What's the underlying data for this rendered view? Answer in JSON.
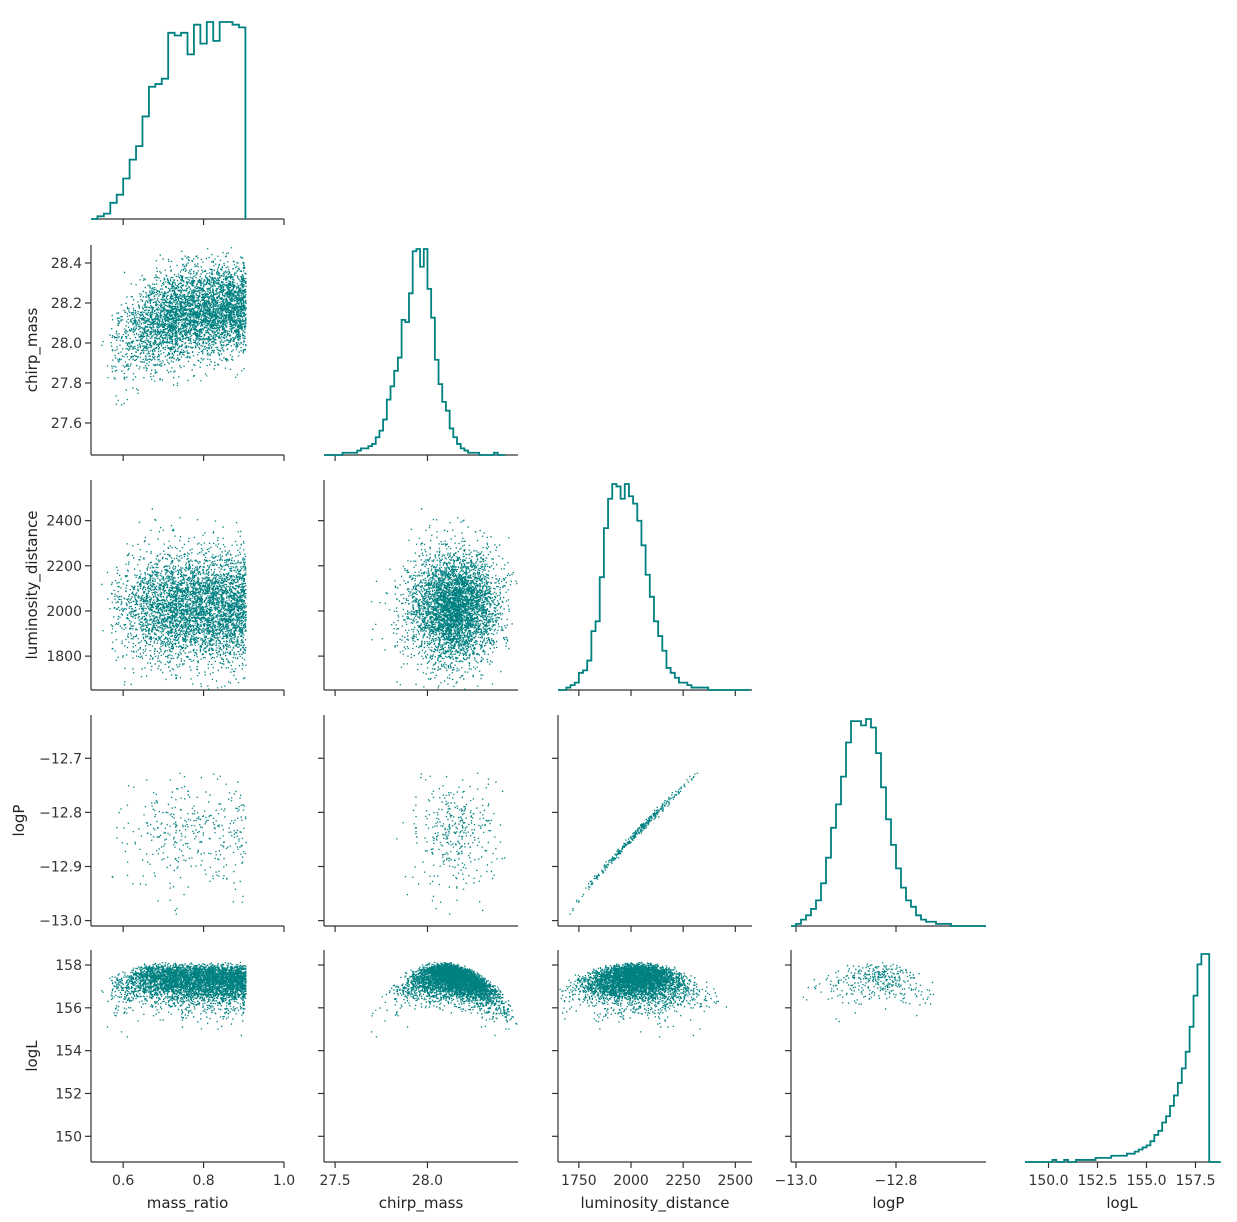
{
  "colors": {
    "accent": "#008080",
    "axis": "#333333",
    "background": "#ffffff"
  },
  "chart_data": {
    "type": "corner",
    "grid": false,
    "variables": [
      {
        "name": "mass_ratio",
        "range": [
          0.52,
          1.0
        ],
        "ticks": [
          0.6,
          0.8,
          1.0
        ],
        "tick_labels": [
          "0.6",
          "0.8",
          "1.0"
        ]
      },
      {
        "name": "chirp_mass",
        "range": [
          27.44,
          28.49
        ],
        "ticks": [
          27.6,
          27.8,
          28.0,
          28.2,
          28.4
        ],
        "tick_labels": [
          "27.6",
          "27.8",
          "28.0",
          "28.2",
          "28.4"
        ],
        "x_ticks": [
          27.5,
          28.0
        ],
        "x_tick_labels": [
          "27.5",
          "28.0"
        ]
      },
      {
        "name": "luminosity_distance",
        "range": [
          1650,
          2580
        ],
        "ticks": [
          1800,
          2000,
          2200,
          2400
        ],
        "tick_labels": [
          "1800",
          "2000",
          "2200",
          "2400"
        ],
        "x_ticks": [
          1750,
          2000,
          2250,
          2500
        ],
        "x_tick_labels": [
          "1750",
          "2000",
          "2250",
          "2500"
        ]
      },
      {
        "name": "logP",
        "range": [
          -13.01,
          -12.62
        ],
        "ticks": [
          -13.0,
          -12.9,
          -12.8,
          -12.7
        ],
        "tick_labels": [
          "−13.0",
          "−12.9",
          "−12.8",
          "−12.7"
        ],
        "x_ticks": [
          -13.0,
          -12.8
        ],
        "x_tick_labels": [
          "−13.0",
          "−12.8"
        ]
      },
      {
        "name": "logL",
        "range": [
          148.8,
          158.7
        ],
        "ticks": [
          150,
          152,
          154,
          156,
          158
        ],
        "tick_labels": [
          "150",
          "152",
          "154",
          "156",
          "158"
        ],
        "x_ticks": [
          150.0,
          152.5,
          155.0,
          157.5
        ],
        "x_tick_labels": [
          "150.0",
          "152.5",
          "155.0",
          "157.5"
        ]
      }
    ],
    "histograms": [
      {
        "variable": "mass_ratio",
        "bin_start": 0.52,
        "bin_width": 0.016,
        "counts": [
          0,
          1,
          2,
          6,
          9,
          15,
          22,
          27,
          38,
          49,
          50,
          52,
          69,
          68,
          69,
          61,
          72,
          65,
          73,
          66,
          73,
          73,
          72,
          71
        ]
      },
      {
        "variable": "chirp_mass",
        "bin_start": 27.44,
        "bin_width": 0.02,
        "counts": [
          0,
          0,
          0,
          0,
          0,
          1,
          1,
          1,
          1,
          2,
          3,
          3,
          4,
          5,
          8,
          11,
          16,
          25,
          31,
          38,
          44,
          61,
          60,
          73,
          92,
          93,
          85,
          93,
          75,
          62,
          43,
          32,
          24,
          20,
          12,
          8,
          5,
          3,
          2,
          1,
          1,
          1,
          0,
          0,
          0,
          0,
          1,
          0,
          0
        ]
      },
      {
        "variable": "luminosity_distance",
        "bin_start": 1650,
        "bin_width": 20,
        "counts": [
          0,
          0,
          1,
          2,
          3,
          7,
          8,
          12,
          24,
          28,
          46,
          66,
          78,
          84,
          83,
          78,
          84,
          79,
          76,
          69,
          59,
          47,
          38,
          28,
          22,
          16,
          9,
          7,
          5,
          3,
          3,
          2,
          1,
          1,
          1,
          1,
          0,
          0,
          0,
          0,
          0,
          0,
          0,
          0,
          0,
          0
        ]
      },
      {
        "variable": "logP",
        "bin_start": -13.01,
        "bin_width": 0.01,
        "counts": [
          0,
          1,
          3,
          5,
          8,
          12,
          20,
          32,
          46,
          57,
          70,
          86,
          96,
          96,
          94,
          97,
          93,
          81,
          65,
          50,
          38,
          27,
          18,
          12,
          9,
          5,
          3,
          2,
          2,
          1,
          1,
          1,
          0,
          0,
          0,
          0,
          0,
          0,
          0
        ]
      },
      {
        "variable": "logL",
        "bin_start": 148.8,
        "bin_width": 0.2,
        "counts": [
          0,
          0,
          0,
          0,
          0,
          0,
          0,
          1,
          0,
          0,
          1,
          0,
          0,
          1,
          1,
          1,
          1,
          1,
          2,
          2,
          2,
          2,
          3,
          3,
          3,
          3,
          4,
          4,
          5,
          6,
          7,
          8,
          10,
          13,
          15,
          19,
          22,
          27,
          32,
          38,
          45,
          53,
          65,
          80,
          95,
          100,
          100,
          0,
          0,
          0
        ]
      }
    ],
    "scatter_sample_points": 4500,
    "note_logL_peak": 158.2
  }
}
